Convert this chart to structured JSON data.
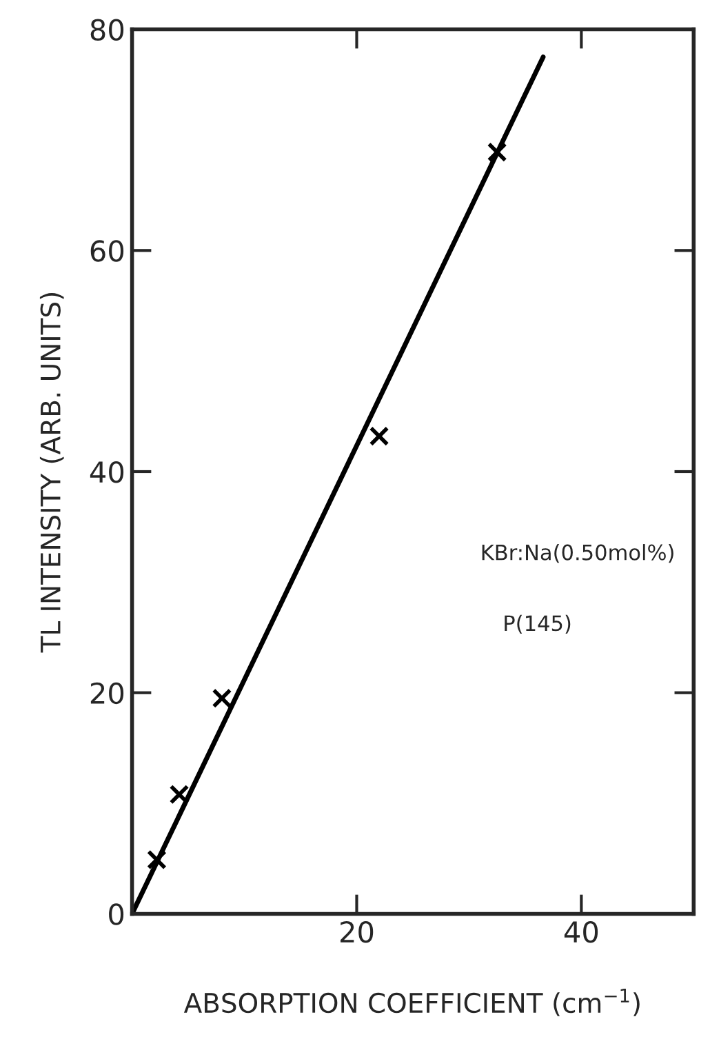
{
  "chart_data": {
    "type": "scatter",
    "xlabel": "ABSORPTION COEFFICIENT (cm$^{−1}$)",
    "ylabel": "TL INTENSITY (ARB. UNITS)",
    "annotations": [
      "KBr:Na(0.50mol%)",
      "P(145)"
    ],
    "series": [
      {
        "color": "#000000",
        "marker": "cross",
        "x": [
          2.2,
          4.2,
          8.0,
          22.0,
          32.5
        ],
        "values": [
          4.9,
          10.8,
          19.5,
          43.2,
          68.9
        ]
      },
      {
        "type": "line",
        "color": "#000000",
        "marker": "none",
        "x": [
          0,
          36.6
        ],
        "values": [
          0,
          77.5
        ]
      }
    ],
    "xlim": [
      0,
      50
    ],
    "ylim": [
      0,
      80
    ],
    "xticks": [
      20,
      40
    ],
    "yticks": [
      0,
      20,
      40,
      60,
      80
    ],
    "grid": false,
    "legend": false
  }
}
